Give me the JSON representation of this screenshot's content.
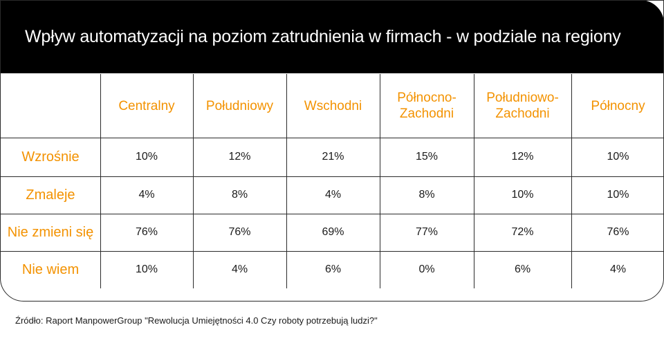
{
  "title": "Wpływ automatyzacji na poziom zatrudnienia w firmach - w podziale na regiony",
  "source": "Źródło: Raport ManpowerGroup \"Rewolucja Umiejętności 4.0 Czy roboty potrzebują ludzi?\"",
  "colors": {
    "accent": "#f39200",
    "title_bg": "#000000",
    "title_text": "#ffffff",
    "value_text": "#1a1a1a"
  },
  "chart_data": {
    "type": "table",
    "title": "Wpływ automatyzacji na poziom zatrudnienia w firmach - w podziale na regiony",
    "columns": [
      "Centralny",
      "Południowy",
      "Wschodni",
      "Północno-Zachodni",
      "Południowo-Zachodni",
      "Północny"
    ],
    "columns_display": [
      [
        "Centralny"
      ],
      [
        "Południowy"
      ],
      [
        "Wschodni"
      ],
      [
        "Północno-",
        "Zachodni"
      ],
      [
        "Południowo-",
        "Zachodni"
      ],
      [
        "Północny"
      ]
    ],
    "rows": [
      {
        "label": "Wzrośnie",
        "values": [
          10,
          12,
          21,
          15,
          12,
          10
        ],
        "display": [
          "10%",
          "12%",
          "21%",
          "15%",
          "12%",
          "10%"
        ]
      },
      {
        "label": "Zmaleje",
        "values": [
          4,
          8,
          4,
          8,
          10,
          10
        ],
        "display": [
          "4%",
          "8%",
          "4%",
          "8%",
          "10%",
          "10%"
        ]
      },
      {
        "label": "Nie zmieni się",
        "values": [
          76,
          76,
          69,
          77,
          72,
          76
        ],
        "display": [
          "76%",
          "76%",
          "69%",
          "77%",
          "72%",
          "76%"
        ]
      },
      {
        "label": "Nie wiem",
        "values": [
          10,
          4,
          6,
          0,
          6,
          4
        ],
        "display": [
          "10%",
          "4%",
          "6%",
          "0%",
          "6%",
          "4%"
        ]
      }
    ],
    "unit": "%"
  }
}
